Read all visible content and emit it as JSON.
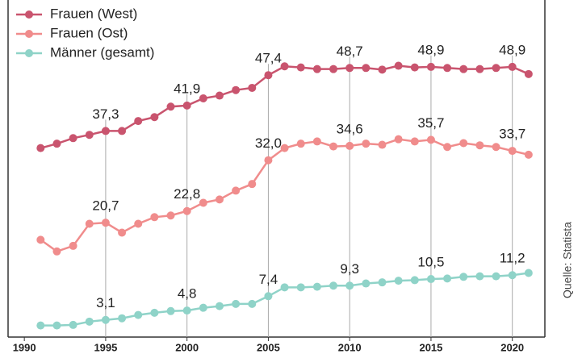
{
  "chart_data": {
    "type": "line",
    "x": [
      1991,
      1992,
      1993,
      1994,
      1995,
      1996,
      1997,
      1998,
      1999,
      2000,
      2001,
      2002,
      2003,
      2004,
      2005,
      2006,
      2007,
      2008,
      2009,
      2010,
      2011,
      2012,
      2013,
      2014,
      2015,
      2016,
      2017,
      2018,
      2019,
      2020,
      2021
    ],
    "series": [
      {
        "name": "Frauen (West)",
        "color": "#c9546e",
        "values": [
          34.2,
          35.0,
          36.0,
          36.6,
          37.3,
          37.3,
          39.1,
          39.8,
          41.7,
          41.9,
          43.2,
          43.7,
          44.7,
          45.1,
          47.4,
          49.0,
          48.8,
          48.5,
          48.5,
          48.7,
          48.7,
          48.4,
          49.1,
          48.8,
          48.9,
          48.7,
          48.5,
          48.5,
          48.7,
          48.9,
          47.6
        ],
        "value_labels": [
          null,
          null,
          null,
          null,
          "37,3",
          null,
          null,
          null,
          null,
          "41,9",
          null,
          null,
          null,
          null,
          "47,4",
          null,
          null,
          null,
          null,
          "48,7",
          null,
          null,
          null,
          null,
          "48,9",
          null,
          null,
          null,
          null,
          "48,9",
          null
        ]
      },
      {
        "name": "Frauen (Ost)",
        "color": "#f08c8c",
        "values": [
          17.6,
          15.5,
          16.5,
          20.5,
          20.7,
          18.9,
          20.5,
          21.7,
          22.0,
          22.8,
          24.3,
          24.9,
          26.5,
          27.7,
          32.0,
          34.2,
          35.0,
          35.4,
          34.5,
          34.6,
          35.0,
          34.8,
          35.8,
          35.4,
          35.7,
          34.4,
          35.1,
          34.7,
          34.4,
          33.7,
          33.0
        ],
        "value_labels": [
          null,
          null,
          null,
          null,
          "20,7",
          null,
          null,
          null,
          null,
          "22,8",
          null,
          null,
          null,
          null,
          "32,0",
          null,
          null,
          null,
          null,
          "34,6",
          null,
          null,
          null,
          null,
          "35,7",
          null,
          null,
          null,
          null,
          "33,7",
          null
        ]
      },
      {
        "name": "Männer (gesamt)",
        "color": "#8fd3c8",
        "values": [
          2.1,
          2.1,
          2.2,
          2.8,
          3.1,
          3.4,
          4.0,
          4.4,
          4.7,
          4.8,
          5.3,
          5.6,
          6.0,
          6.0,
          7.4,
          9.0,
          9.0,
          9.1,
          9.3,
          9.3,
          9.7,
          9.9,
          10.2,
          10.3,
          10.5,
          10.6,
          10.9,
          11.0,
          11.0,
          11.2,
          11.6
        ],
        "value_labels": [
          null,
          null,
          null,
          null,
          "3,1",
          null,
          null,
          null,
          null,
          "4,8",
          null,
          null,
          null,
          null,
          "7,4",
          null,
          null,
          null,
          null,
          "9,3",
          null,
          null,
          null,
          null,
          "10,5",
          null,
          null,
          null,
          null,
          "11,2",
          null
        ]
      }
    ],
    "xlim": [
      1989,
      2022
    ],
    "xticks": [
      1990,
      1995,
      2000,
      2005,
      2010,
      2015,
      2020
    ],
    "ylim": [
      0,
      61
    ],
    "grid": true,
    "legend": "top-left",
    "source": "Quelle: Statista"
  }
}
